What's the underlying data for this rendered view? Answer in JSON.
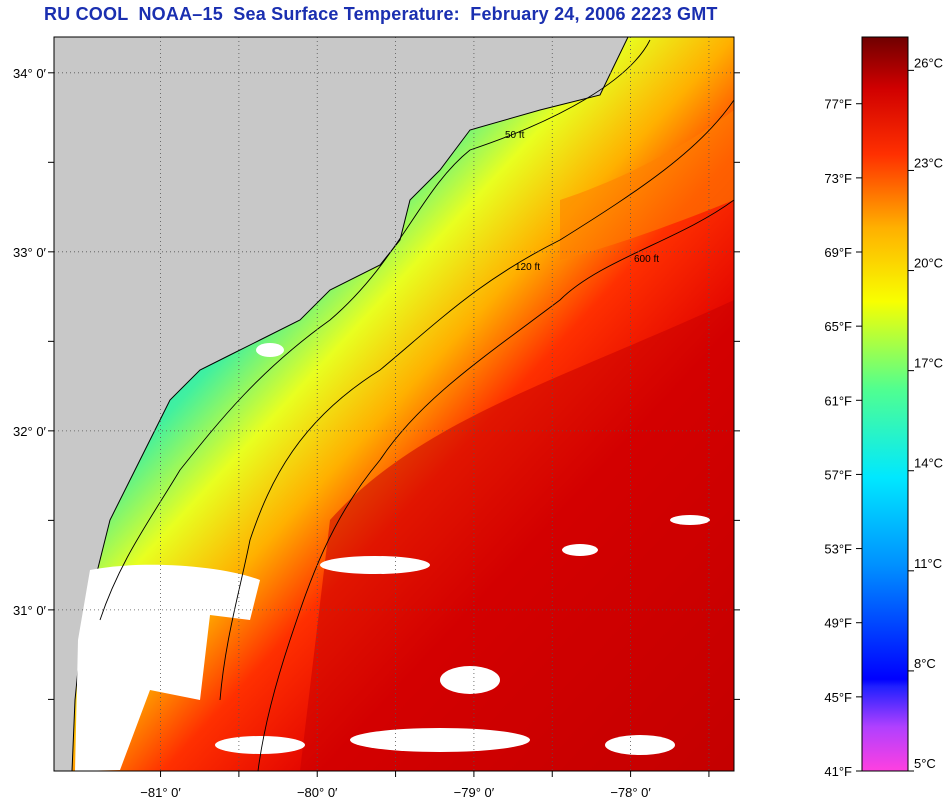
{
  "title": "RU COOL  NOAA–15  Sea Surface Temperature:  February 24, 2006 2223 GMT",
  "map": {
    "lon_ticks": [
      {
        "lon": -81,
        "label": "−81° 0′"
      },
      {
        "lon": -80,
        "label": "−80° 0′"
      },
      {
        "lon": -79,
        "label": "−79° 0′"
      },
      {
        "lon": -78,
        "label": "−78° 0′"
      }
    ],
    "lat_ticks": [
      {
        "lat": 34,
        "label": "34° 0′"
      },
      {
        "lat": 33,
        "label": "33° 0′"
      },
      {
        "lat": 32,
        "label": "32° 0′"
      },
      {
        "lat": 31,
        "label": "31° 0′"
      }
    ],
    "lon_range": [
      -81.68,
      -77.34
    ],
    "lat_range": [
      30.1,
      34.2
    ],
    "contours": [
      {
        "label": "50 ft",
        "color": "#000000"
      },
      {
        "label": "120 ft",
        "color": "#000000"
      },
      {
        "label": "600 ft",
        "color": "#000000"
      }
    ],
    "land_color": "#c8c8c8",
    "cloud_color": "#ffffff"
  },
  "colorbar": {
    "f_ticks": [
      "77°F",
      "73°F",
      "69°F",
      "65°F",
      "61°F",
      "57°F",
      "53°F",
      "49°F",
      "45°F",
      "41°F"
    ],
    "c_ticks": [
      "26°C",
      "23°C",
      "20°C",
      "17°C",
      "14°C",
      "11°C",
      "8°C",
      "5°C"
    ],
    "stops": [
      "#ff40e0",
      "#a040ff",
      "#0000ff",
      "#0090ff",
      "#00e8ff",
      "#60ff80",
      "#f8ff00",
      "#ffb000",
      "#ff4000",
      "#e00000",
      "#800000"
    ]
  }
}
